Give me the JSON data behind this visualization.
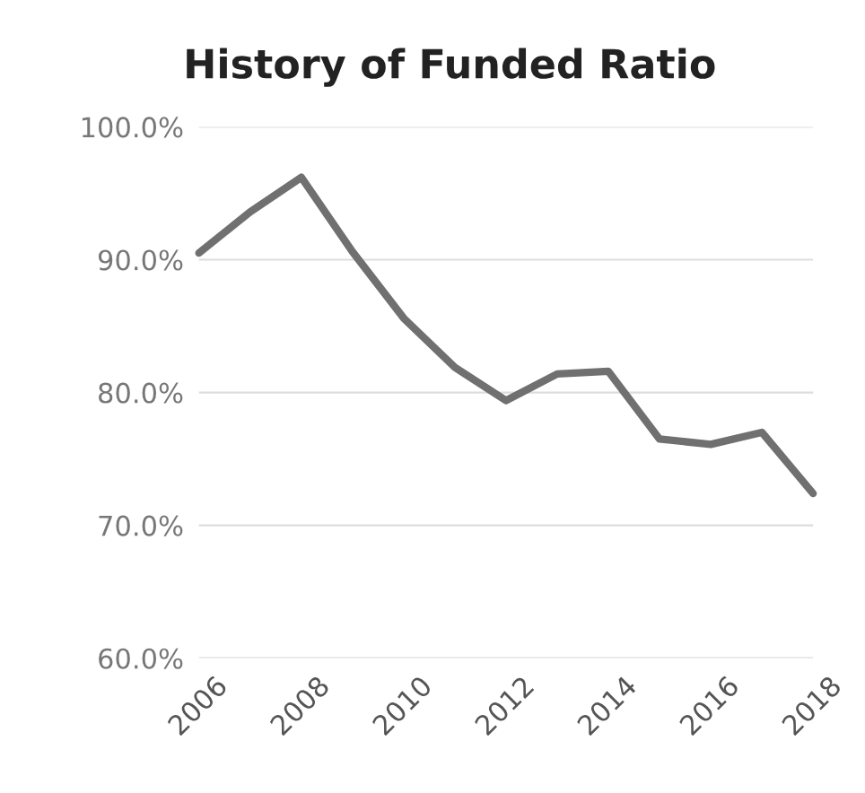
{
  "chart_data": {
    "type": "line",
    "title": "History of Funded Ratio",
    "x": [
      2006,
      2007,
      2008,
      2009,
      2010,
      2011,
      2012,
      2013,
      2014,
      2015,
      2016,
      2017,
      2018
    ],
    "series": [
      {
        "color": "#707070",
        "values": [
          90.5,
          93.6,
          96.2,
          90.6,
          85.6,
          81.9,
          79.4,
          81.4,
          81.6,
          76.5,
          76.1,
          77.0,
          72.4
        ]
      }
    ],
    "xlim": [
      2006,
      2018
    ],
    "xticks": [
      2006,
      2008,
      2010,
      2012,
      2014,
      2016,
      2018
    ],
    "ylim": [
      60,
      100
    ],
    "yticks": [
      {
        "value": 60,
        "label": "60.0%"
      },
      {
        "value": 70,
        "label": "70.0%"
      },
      {
        "value": 80,
        "label": "80.0%"
      },
      {
        "value": 90,
        "label": "90.0%"
      },
      {
        "value": 100,
        "label": "100.0%"
      }
    ],
    "grid": "y",
    "line_style": "solid"
  }
}
